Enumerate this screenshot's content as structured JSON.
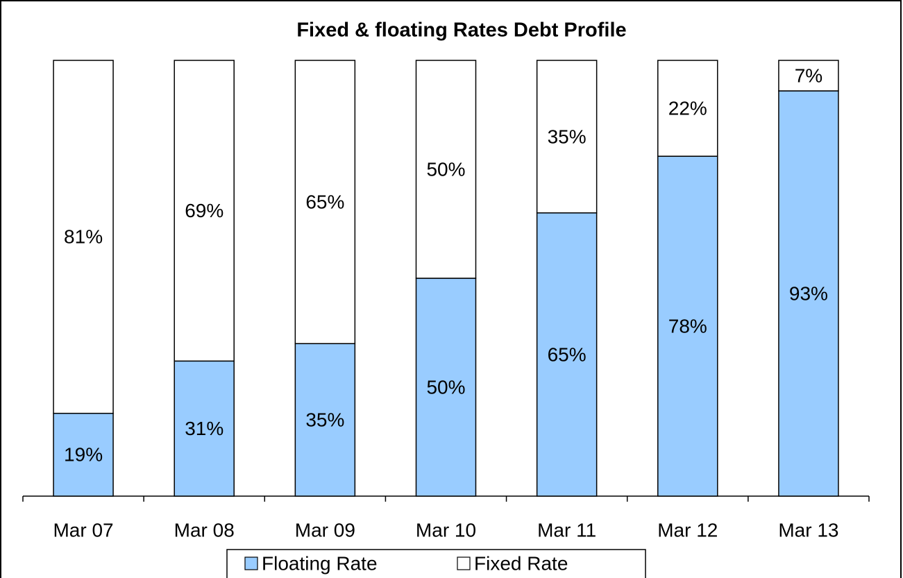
{
  "chart_data": {
    "type": "stacked_bar",
    "title": "Fixed & floating Rates Debt Profile",
    "categories": [
      "Mar 07",
      "Mar 08",
      "Mar 09",
      "Mar 10",
      "Mar 11",
      "Mar 12",
      "Mar 13"
    ],
    "series": [
      {
        "name": "Floating Rate",
        "color": "#99ccff",
        "values": [
          19,
          31,
          35,
          50,
          65,
          78,
          93
        ],
        "value_labels": [
          "19%",
          "31%",
          "35%",
          "50%",
          "65%",
          "78%",
          "93%"
        ]
      },
      {
        "name": "Fixed Rate",
        "color": "#ffffff",
        "values": [
          81,
          69,
          65,
          50,
          35,
          22,
          7
        ],
        "value_labels": [
          "81%",
          "69%",
          "65%",
          "50%",
          "35%",
          "22%",
          "7%"
        ]
      }
    ],
    "legend": "bottom"
  }
}
